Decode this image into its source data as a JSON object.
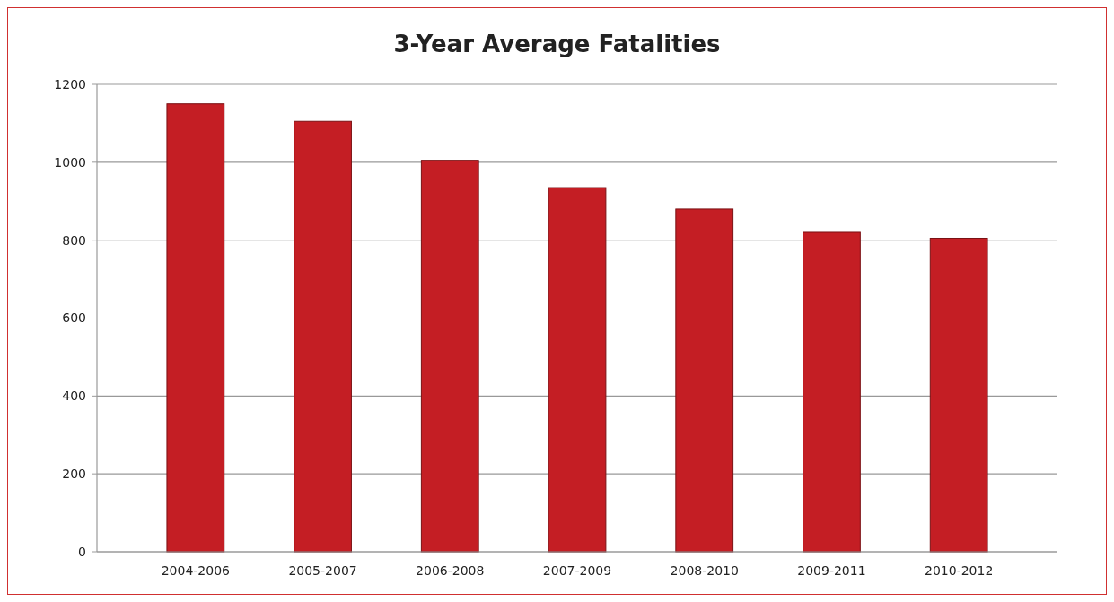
{
  "chart_data": {
    "type": "bar",
    "title": "3-Year Average Fatalities",
    "categories": [
      "2004-2006",
      "2005-2007",
      "2006-2008",
      "2007-2009",
      "2008-2010",
      "2009-2011",
      "2010-2012"
    ],
    "values": [
      1150,
      1105,
      1005,
      935,
      880,
      820,
      805
    ],
    "color": "#c41e24",
    "ylim": [
      0,
      1200
    ],
    "yticks": [
      0,
      200,
      400,
      600,
      800,
      1000,
      1200
    ],
    "grid": "y"
  }
}
